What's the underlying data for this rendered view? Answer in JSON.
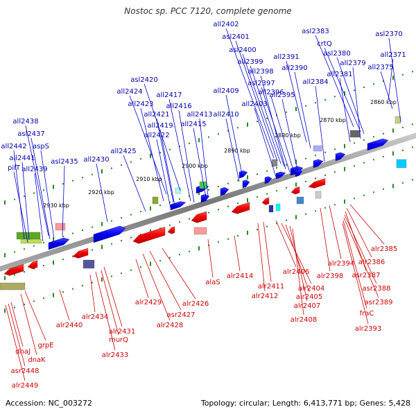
{
  "title": "Nostoc sp. PCC 7120, complete genome",
  "footer": {
    "accession": "Accession: NC_003272",
    "summary": "Topology: circular; Length: 6,413,771 bp; Genes: 5,428"
  },
  "colors": {
    "forward_gene": "#0000ff",
    "reverse_gene": "#ff0000",
    "forward_label": "#0000aa",
    "reverse_label": "#cc0000",
    "backbone": "#888888",
    "tick": "#228822"
  },
  "scale_labels": [
    "2860 kbp",
    "2870 kbp",
    "2880 kbp",
    "2890 kbp",
    "2900 kbp",
    "2910 kbp",
    "2920 kbp",
    "2930 kbp"
  ],
  "forward_genes": [
    "asl2370",
    "all2371",
    "all2375",
    "asl2383",
    "crtQ",
    "asl2380",
    "all2379",
    "all2381",
    "all2391",
    "all2390",
    "all2384",
    "all2402",
    "asl2401",
    "asl2400",
    "all2399",
    "all2398",
    "asl2397",
    "all2396",
    "all2395",
    "all2403",
    "all2409",
    "all2410",
    "asl2420",
    "all2424",
    "all2423",
    "all2421",
    "all2419",
    "all2422",
    "all2417",
    "all2416",
    "all2413",
    "all2415",
    "all2425",
    "all2430",
    "all2438",
    "asl2437",
    "aspS",
    "all2442",
    "all2441",
    "pilT",
    "all2439",
    "asl2435"
  ],
  "reverse_genes": [
    "alr2385",
    "alr2386",
    "asr2387",
    "asr2388",
    "asr2389",
    "fraC",
    "alr2393",
    "alr2394",
    "alr2398",
    "alr2406",
    "alr2404",
    "alr2405",
    "alr2407",
    "alr2408",
    "alr2411",
    "alr2412",
    "alr2414",
    "alaS",
    "alr2426",
    "asr2427",
    "alr2428",
    "alr2429",
    "alr2431",
    "murQ",
    "alr2433",
    "alr2434",
    "alr2440",
    "grpE",
    "dnaK",
    "dnaJ",
    "asr2448",
    "alr2449"
  ]
}
